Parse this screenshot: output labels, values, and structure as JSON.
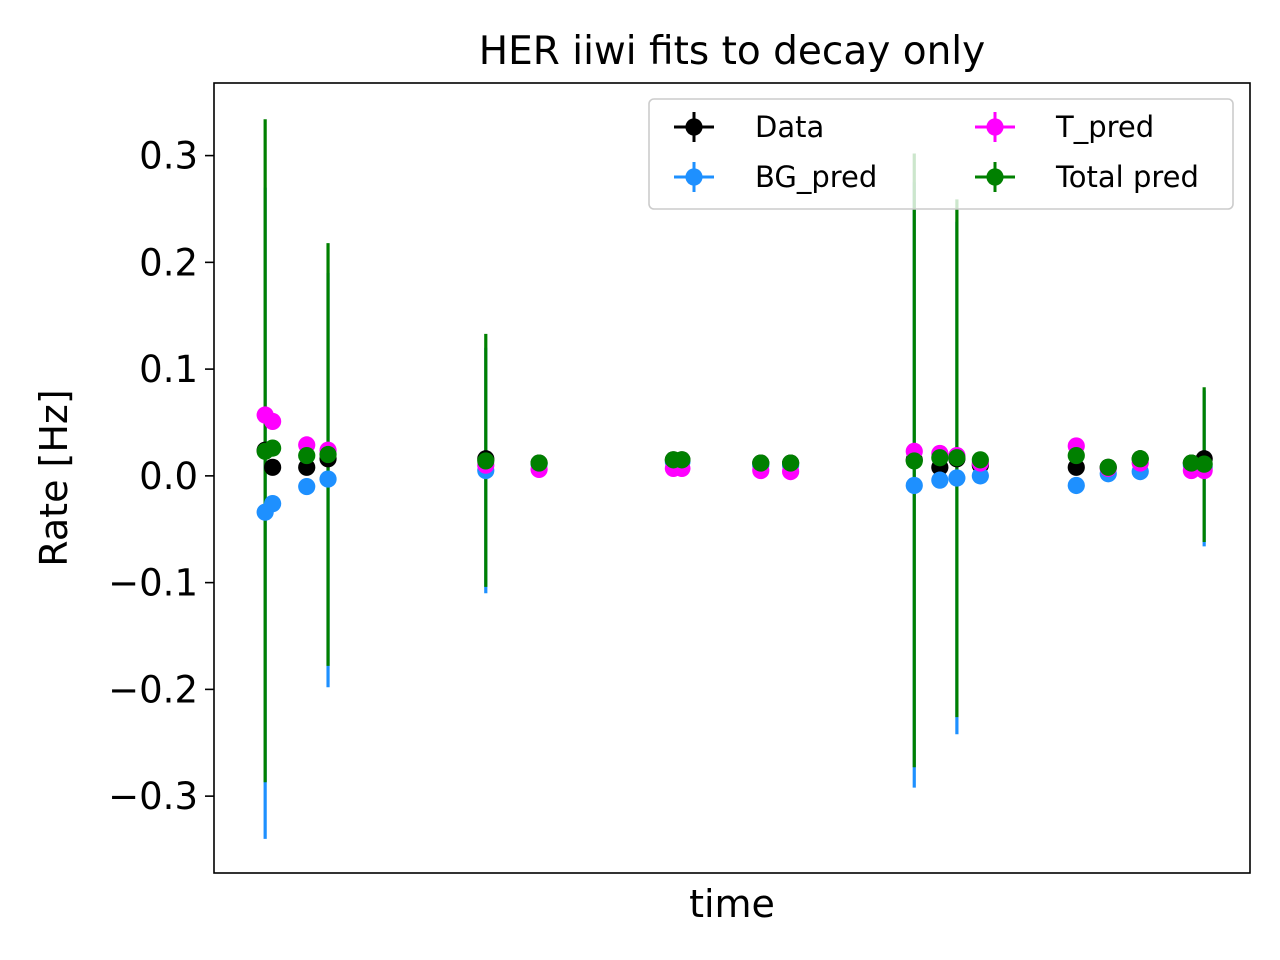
{
  "chart_data": {
    "type": "scatter",
    "title": "HER iiwi fits to decay only",
    "xlabel": "time",
    "ylabel": "Rate [Hz]",
    "xlim": [
      -1.25,
      47.35
    ],
    "ylim": [
      -0.372,
      0.368
    ],
    "x_ticks_shown": false,
    "yticks": [
      {
        "value": 0.3,
        "label": "0.3"
      },
      {
        "value": 0.2,
        "label": "0.2"
      },
      {
        "value": 0.1,
        "label": "0.1"
      },
      {
        "value": 0.0,
        "label": "0.0"
      },
      {
        "value": -0.1,
        "label": "−0.1"
      },
      {
        "value": -0.2,
        "label": "−0.2"
      },
      {
        "value": -0.3,
        "label": "−0.3"
      }
    ],
    "grid": false,
    "legend": {
      "placement": "top-right",
      "columns": 2
    },
    "series": [
      {
        "name": "Data",
        "color": "#000000",
        "points": [
          {
            "x": 1.15,
            "y": 0.024
          },
          {
            "x": 1.5,
            "y": 0.008
          },
          {
            "x": 3.1,
            "y": 0.008
          },
          {
            "x": 4.1,
            "y": 0.016
          },
          {
            "x": 11.5,
            "y": 0.016
          },
          {
            "x": 14.0,
            "y": 0.012
          },
          {
            "x": 20.3,
            "y": 0.015
          },
          {
            "x": 20.7,
            "y": 0.015
          },
          {
            "x": 24.4,
            "y": 0.012
          },
          {
            "x": 25.8,
            "y": 0.012
          },
          {
            "x": 31.6,
            "y": 0.015
          },
          {
            "x": 32.8,
            "y": 0.008
          },
          {
            "x": 33.6,
            "y": 0.016
          },
          {
            "x": 34.7,
            "y": 0.01
          },
          {
            "x": 39.2,
            "y": 0.008
          },
          {
            "x": 40.7,
            "y": 0.008
          },
          {
            "x": 42.2,
            "y": 0.016
          },
          {
            "x": 44.6,
            "y": 0.012
          },
          {
            "x": 45.2,
            "y": 0.016
          }
        ]
      },
      {
        "name": "BG_pred",
        "color": "#1e90ff",
        "points": [
          {
            "x": 1.15,
            "y": -0.034,
            "ylo": -0.34,
            "yhi": 0.27
          },
          {
            "x": 1.5,
            "y": -0.026
          },
          {
            "x": 3.1,
            "y": -0.01
          },
          {
            "x": 4.1,
            "y": -0.003,
            "ylo": -0.198,
            "yhi": 0.19
          },
          {
            "x": 11.5,
            "y": 0.005,
            "ylo": -0.11,
            "yhi": 0.12
          },
          {
            "x": 14.0,
            "y": 0.011
          },
          {
            "x": 20.3,
            "y": 0.013
          },
          {
            "x": 20.7,
            "y": 0.013
          },
          {
            "x": 24.4,
            "y": 0.01
          },
          {
            "x": 25.8,
            "y": 0.01
          },
          {
            "x": 31.6,
            "y": -0.009,
            "ylo": -0.292,
            "yhi": 0.275
          },
          {
            "x": 32.8,
            "y": -0.004
          },
          {
            "x": 33.6,
            "y": -0.002,
            "ylo": -0.242,
            "yhi": 0.238
          },
          {
            "x": 34.7,
            "y": 0.0
          },
          {
            "x": 39.2,
            "y": -0.009
          },
          {
            "x": 40.7,
            "y": 0.002
          },
          {
            "x": 42.2,
            "y": 0.004
          },
          {
            "x": 44.6,
            "y": 0.01
          },
          {
            "x": 45.2,
            "y": 0.008,
            "ylo": -0.066,
            "yhi": 0.08
          }
        ]
      },
      {
        "name": "T_pred",
        "color": "#ff00ff",
        "points": [
          {
            "x": 1.15,
            "y": 0.057
          },
          {
            "x": 1.5,
            "y": 0.051
          },
          {
            "x": 3.1,
            "y": 0.029
          },
          {
            "x": 4.1,
            "y": 0.024
          },
          {
            "x": 11.5,
            "y": 0.01
          },
          {
            "x": 14.0,
            "y": 0.006
          },
          {
            "x": 20.3,
            "y": 0.007
          },
          {
            "x": 20.7,
            "y": 0.007
          },
          {
            "x": 24.4,
            "y": 0.005
          },
          {
            "x": 25.8,
            "y": 0.004
          },
          {
            "x": 31.6,
            "y": 0.023
          },
          {
            "x": 32.8,
            "y": 0.021
          },
          {
            "x": 33.6,
            "y": 0.019
          },
          {
            "x": 34.7,
            "y": 0.012
          },
          {
            "x": 39.2,
            "y": 0.028
          },
          {
            "x": 40.7,
            "y": 0.007
          },
          {
            "x": 42.2,
            "y": 0.012
          },
          {
            "x": 44.6,
            "y": 0.005
          },
          {
            "x": 45.2,
            "y": 0.005
          }
        ]
      },
      {
        "name": "Total pred",
        "color": "#008000",
        "points": [
          {
            "x": 1.15,
            "y": 0.023,
            "ylo": -0.287,
            "yhi": 0.334
          },
          {
            "x": 1.5,
            "y": 0.026
          },
          {
            "x": 3.1,
            "y": 0.019
          },
          {
            "x": 4.1,
            "y": 0.02,
            "ylo": -0.178,
            "yhi": 0.218
          },
          {
            "x": 11.5,
            "y": 0.014,
            "ylo": -0.104,
            "yhi": 0.133
          },
          {
            "x": 14.0,
            "y": 0.012
          },
          {
            "x": 20.3,
            "y": 0.015
          },
          {
            "x": 20.7,
            "y": 0.015
          },
          {
            "x": 24.4,
            "y": 0.012
          },
          {
            "x": 25.8,
            "y": 0.012
          },
          {
            "x": 31.6,
            "y": 0.014,
            "ylo": -0.273,
            "yhi": 0.302
          },
          {
            "x": 32.8,
            "y": 0.017
          },
          {
            "x": 33.6,
            "y": 0.017,
            "ylo": -0.226,
            "yhi": 0.259
          },
          {
            "x": 34.7,
            "y": 0.015
          },
          {
            "x": 39.2,
            "y": 0.019
          },
          {
            "x": 40.7,
            "y": 0.008
          },
          {
            "x": 42.2,
            "y": 0.016
          },
          {
            "x": 44.6,
            "y": 0.012
          },
          {
            "x": 45.2,
            "y": 0.011,
            "ylo": -0.062,
            "yhi": 0.083
          }
        ]
      }
    ]
  }
}
